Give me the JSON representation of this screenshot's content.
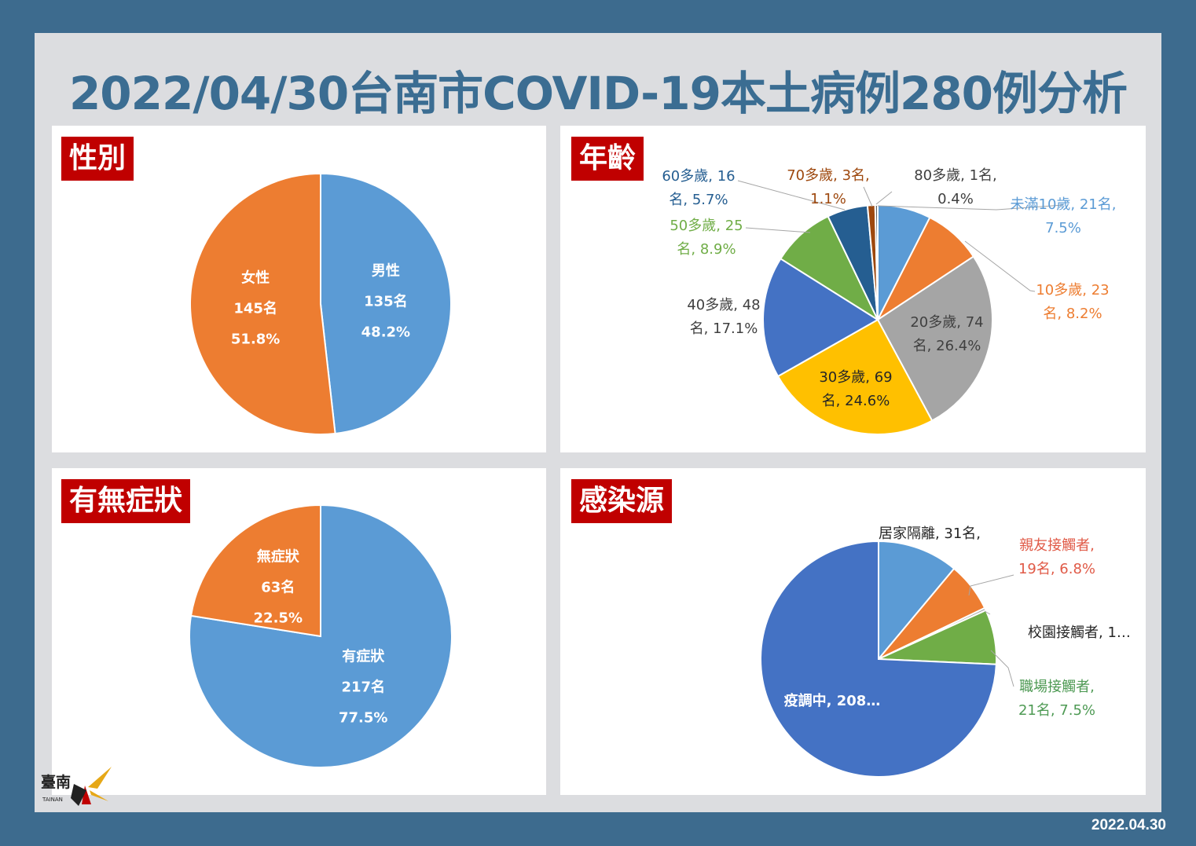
{
  "title": "2022/04/30台南市COVID-19本土病例280例分析",
  "date": "2022.04.30",
  "logo": {
    "text": "臺南",
    "subtext": "TAINAN"
  },
  "colors": {
    "background": "#3d6b8e",
    "title": "#3b6d92",
    "badge": "#c00000",
    "blue": "#5b9bd5",
    "orange": "#ed7d31",
    "gray": "#a5a5a5",
    "yellow": "#ffc000",
    "royal": "#4472c4",
    "green": "#70ad47",
    "navy": "#255e91",
    "brown": "#9e480e",
    "darkgray": "#636363"
  },
  "chart_data": [
    {
      "id": "gender",
      "type": "pie",
      "title": "性別",
      "slices": [
        {
          "label": "男性",
          "count": "135名",
          "percent": "48.2%",
          "value": 135,
          "color": "#5b9bd5"
        },
        {
          "label": "女性",
          "count": "145名",
          "percent": "51.8%",
          "value": 145,
          "color": "#ed7d31"
        }
      ]
    },
    {
      "id": "age",
      "type": "pie",
      "title": "年齡",
      "slices": [
        {
          "label": "未滿10歲, 21名,",
          "label2": "7.5%",
          "value": 21,
          "color": "#5b9bd5"
        },
        {
          "label": "10多歲, 23",
          "label2": "名, 8.2%",
          "value": 23,
          "color": "#ed7d31"
        },
        {
          "label": "20多歲, 74",
          "label2": "名, 26.4%",
          "value": 74,
          "color": "#a5a5a5"
        },
        {
          "label": "30多歲, 69",
          "label2": "名, 24.6%",
          "value": 69,
          "color": "#ffc000"
        },
        {
          "label": "40多歲, 48",
          "label2": "名, 17.1%",
          "value": 48,
          "color": "#4472c4"
        },
        {
          "label": "50多歲, 25",
          "label2": "名, 8.9%",
          "value": 25,
          "color": "#70ad47"
        },
        {
          "label": "60多歲, 16",
          "label2": "名, 5.7%",
          "value": 16,
          "color": "#255e91"
        },
        {
          "label": "70多歲, 3名,",
          "label2": "1.1%",
          "value": 3,
          "color": "#9e480e"
        },
        {
          "label": "80多歲, 1名,",
          "label2": "0.4%",
          "value": 1,
          "color": "#636363"
        }
      ]
    },
    {
      "id": "symptoms",
      "type": "pie",
      "title": "有無症狀",
      "slices": [
        {
          "label": "有症狀",
          "count": "217名",
          "percent": "77.5%",
          "value": 217,
          "color": "#5b9bd5"
        },
        {
          "label": "無症狀",
          "count": "63名",
          "percent": "22.5%",
          "value": 63,
          "color": "#ed7d31"
        }
      ]
    },
    {
      "id": "source",
      "type": "pie",
      "title": "感染源",
      "slices": [
        {
          "label": "居家隔離, 31名,",
          "label2": "",
          "value": 31,
          "color": "#5b9bd5"
        },
        {
          "label": "親友接觸者,",
          "label2": "19名, 6.8%",
          "value": 19,
          "color": "#ed7d31"
        },
        {
          "label": "校園接觸者, 1…",
          "label2": "",
          "value": 1,
          "color": "#a5a5a5"
        },
        {
          "label": "職場接觸者,",
          "label2": "21名, 7.5%",
          "value": 21,
          "color": "#70ad47"
        },
        {
          "label": "疫調中, 208…",
          "label2": "",
          "value": 208,
          "color": "#4472c4"
        }
      ]
    }
  ]
}
